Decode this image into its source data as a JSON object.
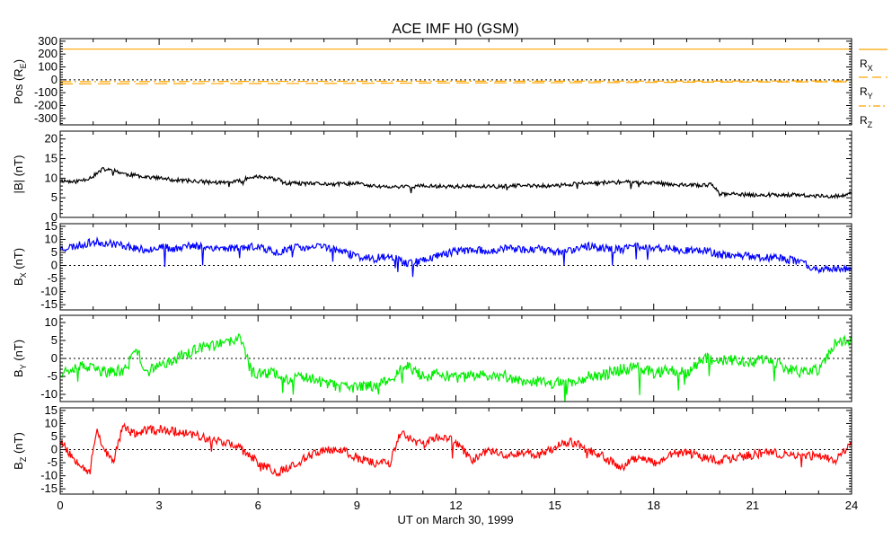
{
  "chart_data": {
    "type": "line",
    "title": "ACE IMF H0 (GSM)",
    "xlabel": "UT on March 30, 1999",
    "xlim": [
      0,
      24
    ],
    "xticks": [
      0,
      3,
      6,
      9,
      12,
      15,
      18,
      21,
      24
    ],
    "xtick_labels": [
      "0",
      "3",
      "6",
      "9",
      "12",
      "15",
      "18",
      "21",
      "24"
    ],
    "panels": [
      {
        "id": "pos",
        "ylabel": "Pos (R",
        "ylabel_sub": "E",
        "ylabel_tail": ")",
        "ylim": [
          -350,
          320
        ],
        "yticks": [
          -300,
          -200,
          -100,
          0,
          100,
          200,
          300
        ],
        "ytick_labels": [
          "-300",
          "-200",
          "-100",
          "0",
          "100",
          "200",
          "300"
        ],
        "zero_line": true,
        "series": [
          {
            "name": "R",
            "sub": "X",
            "color": "#ffa500",
            "style": "solid",
            "x": [
              0,
              24
            ],
            "y": [
              238,
              238
            ]
          },
          {
            "name": "R",
            "sub": "Y",
            "color": "#ffa500",
            "style": "dashed",
            "x": [
              0,
              4,
              8,
              12,
              16,
              20,
              24
            ],
            "y": [
              -32,
              -30,
              -28,
              -24,
              -22,
              -18,
              -16
            ]
          },
          {
            "name": "R",
            "sub": "Z",
            "color": "#ffa500",
            "style": "dashdot",
            "x": [
              0,
              6,
              12,
              18,
              24
            ],
            "y": [
              -14,
              -12,
              -11,
              -10,
              -9
            ]
          }
        ]
      },
      {
        "id": "bt",
        "ylabel": "|B| (nT)",
        "ylim": [
          0,
          22
        ],
        "yticks": [
          0,
          5,
          10,
          15,
          20
        ],
        "ytick_labels": [
          "0",
          "5",
          "10",
          "15",
          "20"
        ],
        "zero_line": false,
        "series": [
          {
            "name": "|B|",
            "color": "#000000",
            "noise": 0.5,
            "seed": 11,
            "x": [
              0,
              0.4,
              0.8,
              1.0,
              1.3,
              1.7,
              2.0,
              2.5,
              3.0,
              3.5,
              4.0,
              4.5,
              5.0,
              5.5,
              5.8,
              6.2,
              6.6,
              6.8,
              7.5,
              8.5,
              9.0,
              9.5,
              10.0,
              11.0,
              12.0,
              13.0,
              14.0,
              15.0,
              15.5,
              16.0,
              17.0,
              18.0,
              19.0,
              19.8,
              20.0,
              21.0,
              22.0,
              23.0,
              23.8,
              24.0
            ],
            "y": [
              9.5,
              9.0,
              9.8,
              10.5,
              12.3,
              11.8,
              11.0,
              10.5,
              10.0,
              9.5,
              9.3,
              9.0,
              8.8,
              9.3,
              10.5,
              10.2,
              9.7,
              8.7,
              8.6,
              8.5,
              8.7,
              8.0,
              7.7,
              8.0,
              7.9,
              7.8,
              8.1,
              8.0,
              8.5,
              8.8,
              9.0,
              8.8,
              8.2,
              8.3,
              6.0,
              5.7,
              5.8,
              5.4,
              5.5,
              6.2
            ]
          }
        ]
      },
      {
        "id": "bx",
        "ylabel": "B",
        "ylabel_sub": "X",
        "ylabel_tail": " (nT)",
        "ylim": [
          -17,
          16
        ],
        "yticks": [
          -15,
          -10,
          -5,
          0,
          5,
          10,
          15
        ],
        "ytick_labels": [
          "-15",
          "-10",
          "-5",
          "0",
          "5",
          "10",
          "15"
        ],
        "zero_line": true,
        "series": [
          {
            "name": "BX",
            "color": "#0000ff",
            "noise": 1.5,
            "seed": 23,
            "x": [
              0,
              0.5,
              1.0,
              1.5,
              2.0,
              2.5,
              3.0,
              3.5,
              4.0,
              4.5,
              5.0,
              5.5,
              6.0,
              6.3,
              6.6,
              7.0,
              7.5,
              8.0,
              8.5,
              9.0,
              9.5,
              10.0,
              10.5,
              11.0,
              11.5,
              12.0,
              12.5,
              13.0,
              13.5,
              14.0,
              14.5,
              15.0,
              15.5,
              16.0,
              16.5,
              17.0,
              17.5,
              18.0,
              18.5,
              19.0,
              19.5,
              20.0,
              20.5,
              21.0,
              21.5,
              22.0,
              22.5,
              23.0,
              23.5,
              24.0
            ],
            "y": [
              6.5,
              7.5,
              9.0,
              8.5,
              7.5,
              6.0,
              7.0,
              6.5,
              7.5,
              7.0,
              6.5,
              7.0,
              7.0,
              6.0,
              5.0,
              7.0,
              6.5,
              7.5,
              5.5,
              3.5,
              2.5,
              4.0,
              1.0,
              2.0,
              4.0,
              5.5,
              6.0,
              5.5,
              6.5,
              6.0,
              6.5,
              5.0,
              6.0,
              7.5,
              6.5,
              6.0,
              7.5,
              7.0,
              6.5,
              5.5,
              6.0,
              4.0,
              4.0,
              3.5,
              3.0,
              2.5,
              1.0,
              -1.5,
              -1.0,
              -2.0
            ]
          }
        ]
      },
      {
        "id": "by",
        "ylabel": "B",
        "ylabel_sub": "Y",
        "ylabel_tail": " (nT)",
        "ylim": [
          -12,
          12
        ],
        "yticks": [
          -10,
          -5,
          0,
          5,
          10
        ],
        "ytick_labels": [
          "-10",
          "-5",
          "0",
          "5",
          "10"
        ],
        "zero_line": true,
        "series": [
          {
            "name": "BY",
            "color": "#00ee00",
            "noise": 1.6,
            "seed": 37,
            "x": [
              0,
              0.5,
              1.0,
              1.5,
              2.0,
              2.3,
              2.6,
              3.0,
              3.5,
              4.0,
              4.5,
              5.0,
              5.3,
              5.5,
              5.8,
              6.5,
              7.0,
              7.5,
              8.0,
              8.5,
              9.0,
              9.5,
              10.0,
              10.5,
              11.0,
              11.5,
              12.0,
              12.5,
              13.0,
              13.5,
              14.0,
              14.5,
              15.0,
              15.5,
              16.0,
              16.5,
              17.0,
              17.5,
              18.0,
              18.5,
              19.0,
              19.5,
              20.0,
              20.5,
              21.0,
              21.5,
              22.0,
              22.5,
              23.0,
              23.5,
              24.0
            ],
            "y": [
              -4.0,
              -2.0,
              -3.0,
              -4.0,
              -3.0,
              3.0,
              -4.0,
              -2.0,
              0.0,
              2.0,
              3.5,
              4.0,
              5.0,
              5.5,
              -4.0,
              -4.0,
              -6.0,
              -5.0,
              -7.0,
              -8.0,
              -8.0,
              -7.5,
              -6.0,
              -2.0,
              -5.0,
              -4.5,
              -5.5,
              -5.0,
              -4.5,
              -5.0,
              -6.0,
              -6.5,
              -7.0,
              -6.5,
              -5.0,
              -4.5,
              -3.0,
              -2.5,
              -4.0,
              -3.0,
              -4.0,
              0.0,
              -0.5,
              -0.5,
              -1.0,
              0.0,
              -3.0,
              -4.0,
              -3.0,
              4.0,
              5.5
            ]
          }
        ]
      },
      {
        "id": "bz",
        "ylabel": "B",
        "ylabel_sub": "Z",
        "ylabel_tail": " (nT)",
        "ylim": [
          -17,
          16
        ],
        "yticks": [
          -15,
          -10,
          -5,
          0,
          5,
          10,
          15
        ],
        "ytick_labels": [
          "-15",
          "-10",
          "-5",
          "0",
          "5",
          "10",
          "15"
        ],
        "zero_line": true,
        "series": [
          {
            "name": "BZ",
            "color": "#ff0000",
            "noise": 1.7,
            "seed": 53,
            "x": [
              0,
              0.3,
              0.6,
              0.9,
              1.1,
              1.3,
              1.6,
              1.9,
              2.2,
              2.5,
              3.0,
              3.5,
              4.0,
              4.5,
              5.0,
              5.5,
              6.0,
              6.3,
              6.6,
              7.0,
              7.5,
              8.0,
              8.5,
              9.0,
              9.5,
              10.0,
              10.3,
              10.5,
              11.0,
              11.5,
              12.0,
              12.5,
              13.0,
              13.5,
              14.0,
              14.5,
              15.0,
              15.5,
              16.0,
              16.5,
              17.0,
              17.5,
              18.0,
              18.5,
              19.0,
              19.5,
              20.0,
              20.5,
              21.0,
              21.5,
              22.0,
              22.5,
              23.0,
              23.5,
              24.0
            ],
            "y": [
              4.0,
              -2.0,
              -5.0,
              -9.0,
              8.0,
              1.0,
              -5.0,
              9.0,
              6.0,
              7.0,
              8.0,
              7.0,
              6.0,
              4.0,
              3.0,
              0.0,
              -5.0,
              -7.0,
              -9.0,
              -6.0,
              -3.0,
              0.0,
              0.0,
              -3.0,
              -5.0,
              -5.0,
              6.0,
              5.0,
              2.0,
              5.0,
              3.0,
              -4.0,
              0.0,
              -2.0,
              -1.0,
              -2.0,
              1.0,
              3.0,
              0.0,
              -3.0,
              -7.0,
              -3.0,
              -5.0,
              -2.0,
              -1.0,
              -3.0,
              -4.0,
              -3.0,
              -2.0,
              -1.0,
              -2.0,
              -3.0,
              -2.0,
              -4.0,
              2.0
            ]
          }
        ]
      }
    ]
  }
}
